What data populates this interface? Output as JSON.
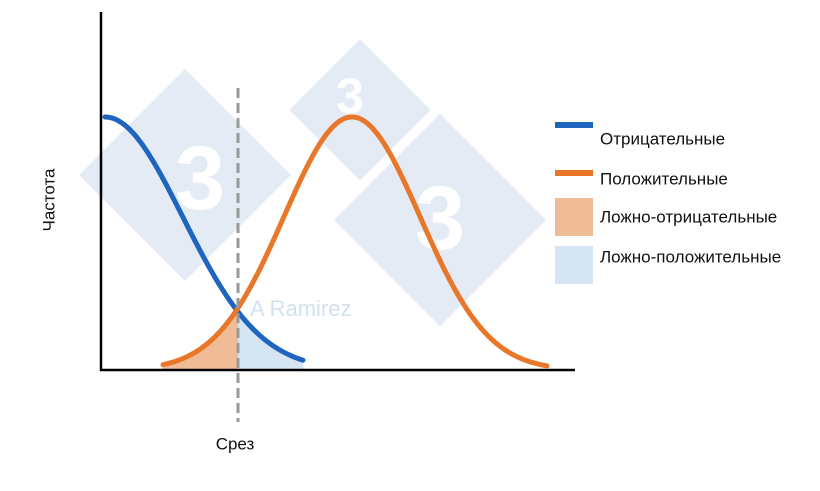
{
  "axis_label_y": "Частота",
  "cutoff_label": "Срез",
  "watermark": "A Ramirez",
  "legend": [
    "Отрицательные",
    "Положительные",
    "Ложно-отрицательные",
    "Ложно-положительные"
  ]
}
